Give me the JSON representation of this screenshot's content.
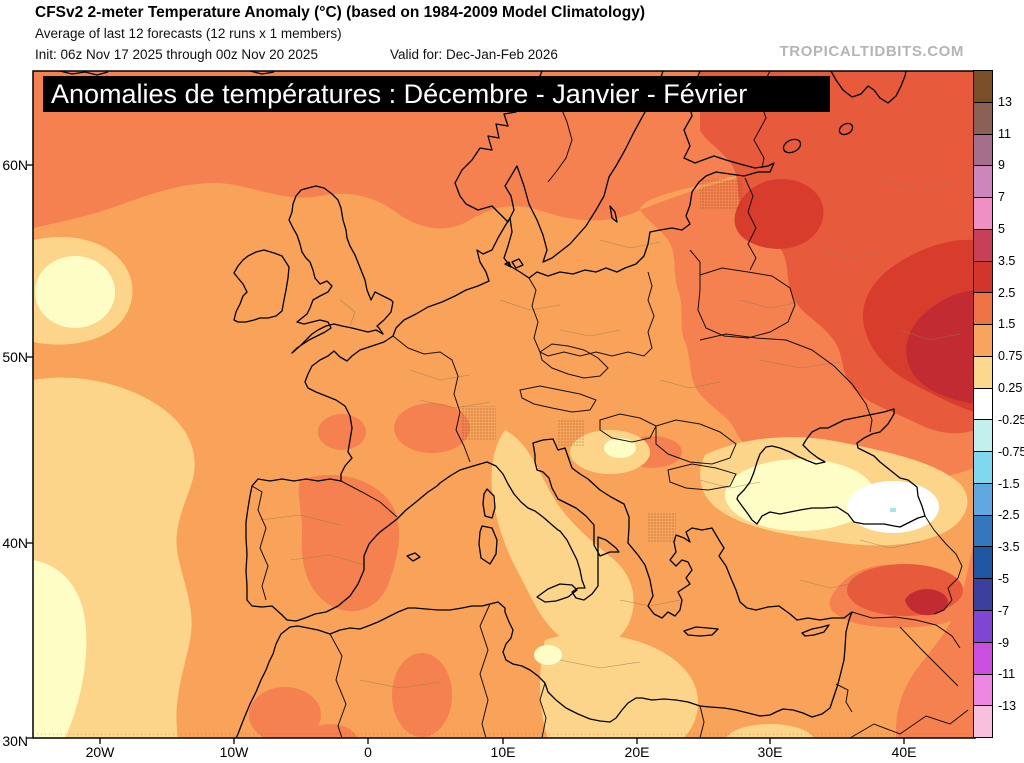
{
  "header": {
    "title": "CFSv2 2-meter Temperature Anomaly (°C) (based on 1984-2009 Model Climatology)",
    "subtitle": "Average of last 12 forecasts (12 runs x 1 members)",
    "init_line": "Init: 06z Nov 17 2025 through 00z Nov 20 2025",
    "valid_line": "Valid for: Dec-Jan-Feb 2026",
    "watermark": "TROPICALTIDBITS.COM"
  },
  "banner": {
    "text": "Anomalies de températures : Décembre - Janvier - Février"
  },
  "map": {
    "x_axis_labels": [
      "20W",
      "10W",
      "0",
      "10E",
      "20E",
      "30E",
      "40E"
    ],
    "y_axis_labels": [
      "60N",
      "50N",
      "40N",
      "30N"
    ],
    "shading_palette": {
      "base_plus_1_5_to_2_5": "#f9a25a",
      "plus_0_75_to_1_5": "#fcd58a",
      "plus_0_25_to_0_75": "#fefdc6",
      "near_zero_white": "#ffffff",
      "slight_negative_dot": "#9fe8e6",
      "plus_2_5_to_3_5": "#f4814f",
      "plus_3_5_to_5": "#e85a3c",
      "plus_5_to_7": "#d83c2c",
      "strongest_warm": "#c22b31"
    },
    "anomaly_summary": [
      {
        "area": "Most of western/central Europe, UK, Mediterranean",
        "anomaly_c": "+1.5 to +2.5"
      },
      {
        "area": "NE Europe, Baltics, western Russia",
        "anomaly_c": "+2.5 to +5"
      },
      {
        "area": "Far northeast / east of map",
        "anomaly_c": "+3.5 to +5 (strongest)"
      },
      {
        "area": "Eastern Atlantic west of Iberia",
        "anomaly_c": "+0.25 to +1.5"
      },
      {
        "area": "Eastern Black Sea",
        "anomaly_c": "near 0 (white spot)"
      },
      {
        "area": "Eastern Turkey / Caucasus",
        "anomaly_c": "+2.5 to +5"
      }
    ]
  },
  "colorbar": {
    "boundary_labels": [
      "13",
      "11",
      "9",
      "7",
      "5",
      "3.5",
      "2.5",
      "1.5",
      "0.75",
      "0.25",
      "-0.25",
      "-0.75",
      "-1.5",
      "-2.5",
      "-3.5",
      "-5",
      "-7",
      "-9",
      "-11",
      "-13"
    ],
    "bands_top_to_bottom": [
      {
        "range": "> 13",
        "color": "#7a4e27",
        "texture": "warm-dots"
      },
      {
        "range": "11 to 13",
        "color": "#8d6055",
        "texture": "warm-dots"
      },
      {
        "range": "9 to 11",
        "color": "#a56f8c",
        "texture": "none"
      },
      {
        "range": "7 to 9",
        "color": "#cd86bb",
        "texture": "none"
      },
      {
        "range": "5 to 7",
        "color": "#ef8fc4",
        "texture": "none"
      },
      {
        "range": "3.5 to 5",
        "color": "#c84058",
        "texture": "dark-dots"
      },
      {
        "range": "2.5 to 3.5",
        "color": "#d2362a",
        "texture": "none"
      },
      {
        "range": "1.5 to 2.5",
        "color": "#ee7446",
        "texture": "none"
      },
      {
        "range": "0.75 to 1.5",
        "color": "#f9a45c",
        "texture": "none"
      },
      {
        "range": "0.25 to 0.75",
        "color": "#fcd88e",
        "texture": "none"
      },
      {
        "range": "-0.25 to 0.25",
        "color": "#ffffff",
        "texture": "none"
      },
      {
        "range": "-0.75 to -0.25",
        "color": "#c2f0ec",
        "texture": "none"
      },
      {
        "range": "-1.5 to -0.75",
        "color": "#7fd9ee",
        "texture": "none"
      },
      {
        "range": "-2.5 to -1.5",
        "color": "#5fa8e0",
        "texture": "light-dots"
      },
      {
        "range": "-3.5 to -2.5",
        "color": "#3577bc",
        "texture": "light-dots"
      },
      {
        "range": "-5 to -3.5",
        "color": "#1f57a4",
        "texture": "none"
      },
      {
        "range": "-7 to -5",
        "color": "#3d3f9e",
        "texture": "light-dots"
      },
      {
        "range": "-9 to -7",
        "color": "#8045d2",
        "texture": "none"
      },
      {
        "range": "-11 to -9",
        "color": "#c94fe0",
        "texture": "none"
      },
      {
        "range": "-13 to -11",
        "color": "#ee86e4",
        "texture": "light-dots"
      },
      {
        "range": "< -13",
        "color": "#f8c0dc",
        "texture": "light-dots"
      }
    ]
  }
}
